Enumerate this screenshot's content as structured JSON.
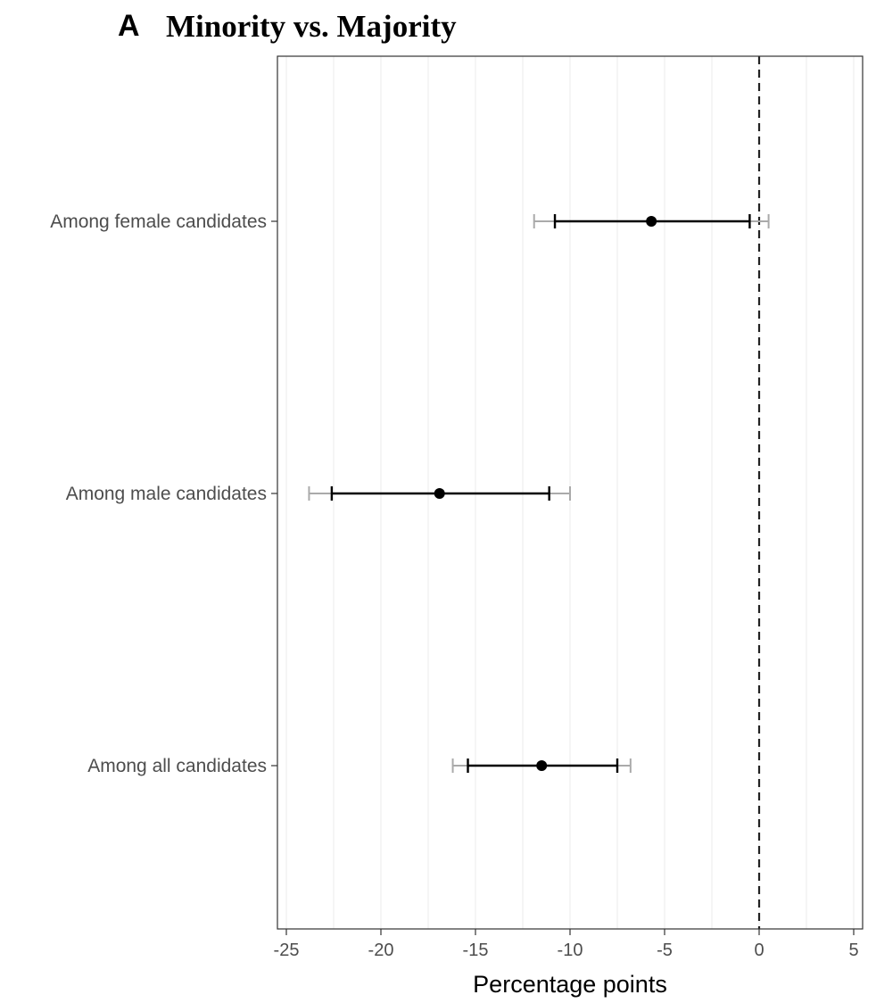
{
  "chart_data": {
    "type": "errorbar",
    "panel_letter": "A",
    "title": "Minority vs. Majority",
    "xlabel": "Percentage points",
    "ylabel": "",
    "xlim": [
      -25,
      5
    ],
    "xticks": [
      -25,
      -20,
      -15,
      -10,
      -5,
      0,
      5
    ],
    "reference_line": 0,
    "grid": "vertical",
    "categories": [
      "Among female candidates",
      "Among male candidates",
      "Among all candidates"
    ],
    "estimates": [
      -5.7,
      -16.9,
      -11.5
    ],
    "ci_inner": [
      [
        -10.8,
        -0.5
      ],
      [
        -22.6,
        -11.1
      ],
      [
        -15.4,
        -7.5
      ]
    ],
    "ci_outer": [
      [
        -11.9,
        0.5
      ],
      [
        -23.8,
        -10.0
      ],
      [
        -16.2,
        -6.8
      ]
    ],
    "colors": {
      "inner": "#000000",
      "outer": "#aaaaaa",
      "point": "#000000",
      "grid": "#ebebeb"
    }
  }
}
